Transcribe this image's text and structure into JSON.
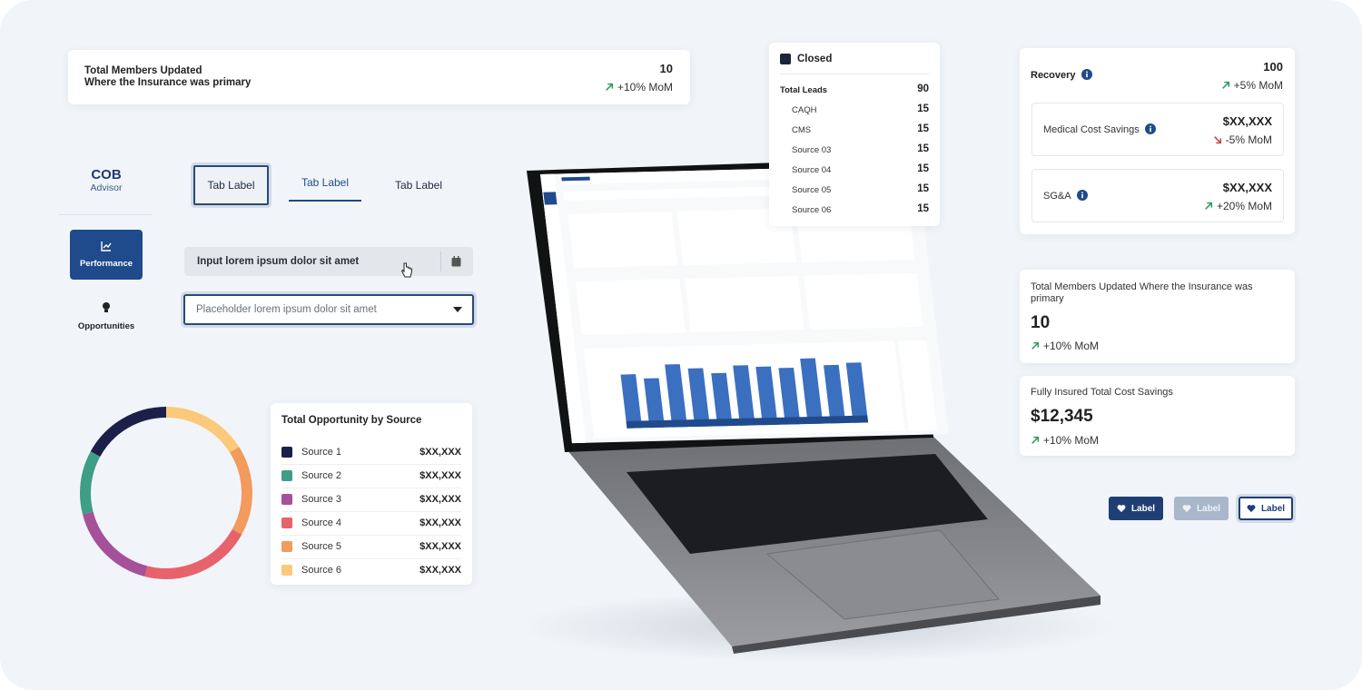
{
  "summary_card": {
    "title_lines": [
      "Total Members Updated",
      "Where the Insurance was primary"
    ],
    "value": 10,
    "delta": "+10% MoM"
  },
  "brand": {
    "name": "COB",
    "subtitle": "Advisor"
  },
  "nav": [
    "Performance",
    "Opportunities"
  ],
  "tabs": [
    "Tab Label",
    "Tab Label",
    "Tab Label"
  ],
  "inputs": {
    "filled": "Input lorem ipsum dolor sit amet",
    "placeholder": "Placeholder lorem ipsum dolor sit amet"
  },
  "opportunity": {
    "title": "Total Opportunity by Source",
    "sources": [
      {
        "name": "Source 1",
        "amount": "$XX,XXX",
        "color": "#1c1f4a",
        "share": 17
      },
      {
        "name": "Source 2",
        "amount": "$XX,XXX",
        "color": "#3f9e86",
        "share": 12
      },
      {
        "name": "Source 3",
        "amount": "$XX,XXX",
        "color": "#a5519a",
        "share": 17
      },
      {
        "name": "Source 4",
        "amount": "$XX,XXX",
        "color": "#e8626b",
        "share": 21
      },
      {
        "name": "Source 5",
        "amount": "$XX,XXX",
        "color": "#f39a5e",
        "share": 17
      },
      {
        "name": "Source 6",
        "amount": "$XX,XXX",
        "color": "#fbc97a",
        "share": 16
      }
    ]
  },
  "leads": {
    "status": "Closed",
    "total_label": "Total Leads",
    "total": 90,
    "rows": [
      {
        "name": "CAQH",
        "count": 15
      },
      {
        "name": "CMS",
        "count": 15
      },
      {
        "name": "Source 03",
        "count": 15
      },
      {
        "name": "Source 04",
        "count": 15
      },
      {
        "name": "Source 05",
        "count": 15
      },
      {
        "name": "Source 06",
        "count": 15
      }
    ]
  },
  "recovery": {
    "title": "Recovery",
    "value": 100,
    "delta": "+5% MoM",
    "items": [
      {
        "name": "Medical Cost Savings",
        "amount": "$XX,XXX",
        "delta": "-5% MoM",
        "direction": "down"
      },
      {
        "name": "SG&A",
        "amount": "$XX,XXX",
        "delta": "+20% MoM",
        "direction": "up"
      }
    ]
  },
  "members_card": {
    "title": "Total Members Updated Where the Insurance was primary",
    "value": 10,
    "delta": "+10% MoM"
  },
  "savings_card": {
    "title": "Fully Insured Total Cost Savings",
    "value": "$12,345",
    "delta": "+10% MoM"
  },
  "buttons": [
    {
      "label": "Label",
      "style": "primary"
    },
    {
      "label": "Label",
      "style": "disabled"
    },
    {
      "label": "Label",
      "style": "outline"
    }
  ]
}
